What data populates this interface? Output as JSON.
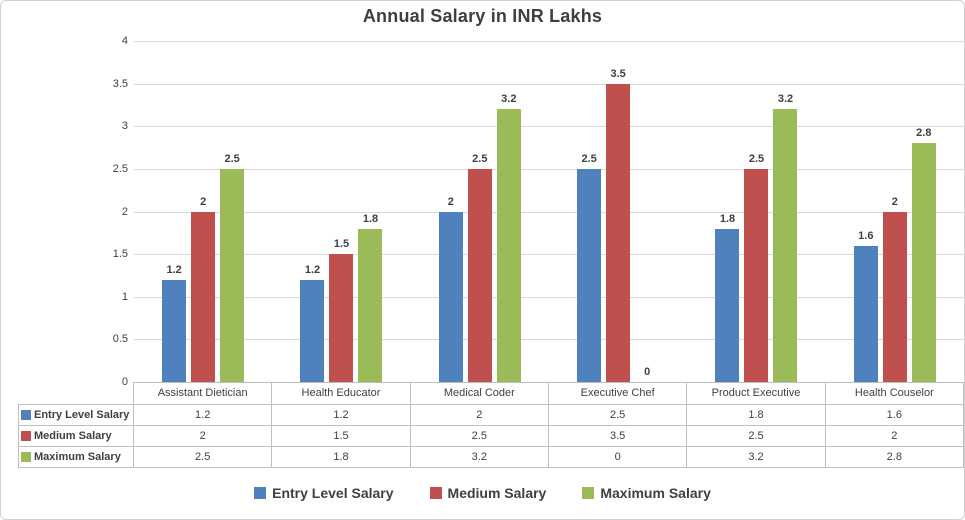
{
  "chart_data": {
    "type": "bar",
    "title": "Annual Salary in INR Lakhs",
    "categories": [
      "Assistant Dietician",
      "Health Educator",
      "Medical Coder",
      "Executive Chef",
      "Product Executive",
      "Health Couselor"
    ],
    "series": [
      {
        "name": "Entry Level Salary",
        "color": "#4F81BD",
        "values": [
          1.2,
          1.2,
          2,
          2.5,
          1.8,
          1.6
        ]
      },
      {
        "name": "Medium Salary",
        "color": "#C0504D",
        "values": [
          2,
          1.5,
          2.5,
          3.5,
          2.5,
          2
        ]
      },
      {
        "name": "Maximum Salary",
        "color": "#9BBB59",
        "values": [
          2.5,
          1.8,
          3.2,
          0,
          3.2,
          2.8
        ]
      }
    ],
    "xlabel": "",
    "ylabel": "",
    "ylim": [
      0,
      4
    ],
    "yticks": [
      "4",
      "3.5",
      "3",
      "2.5",
      "2",
      "1.5",
      "1",
      "0.5",
      "0"
    ],
    "grid": true,
    "data_labels": true,
    "data_table": true,
    "legend_position": "bottom"
  },
  "colors": {
    "gridline": "#D9D9D9",
    "axis_line": "#BFBFBF",
    "table_border": "#BFBFBF",
    "frame_border": "#D0D0D0",
    "text": "#404040",
    "title": "#3F3F3F",
    "background": "#FFFFFF"
  }
}
